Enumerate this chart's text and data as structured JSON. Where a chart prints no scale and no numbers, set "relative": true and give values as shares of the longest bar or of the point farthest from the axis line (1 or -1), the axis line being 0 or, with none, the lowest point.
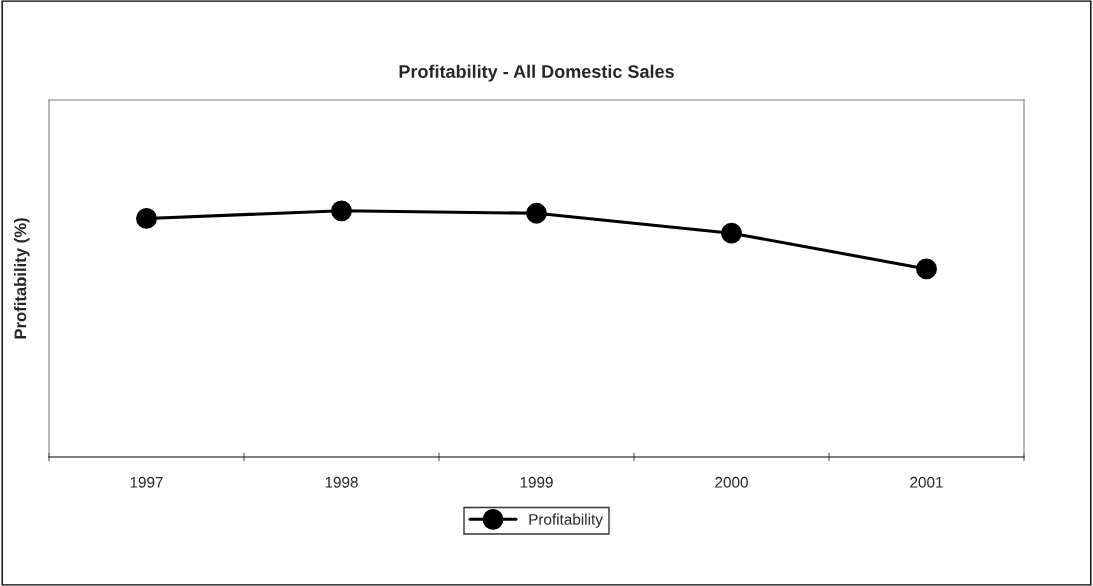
{
  "chart_data": {
    "type": "line",
    "title": "Profitability - All Domestic Sales",
    "ylabel": "Profitability (%)",
    "categories": [
      "1997",
      "1998",
      "1999",
      "2000",
      "2001"
    ],
    "series": [
      {
        "name": "Profitability",
        "color": "#000000",
        "values": [
          0.969,
          1,
          0.99,
          0.909,
          0.764
        ]
      }
    ],
    "relative": true,
    "marker": "circle",
    "line_style": "solid",
    "legend": "bottom",
    "grid": false
  }
}
